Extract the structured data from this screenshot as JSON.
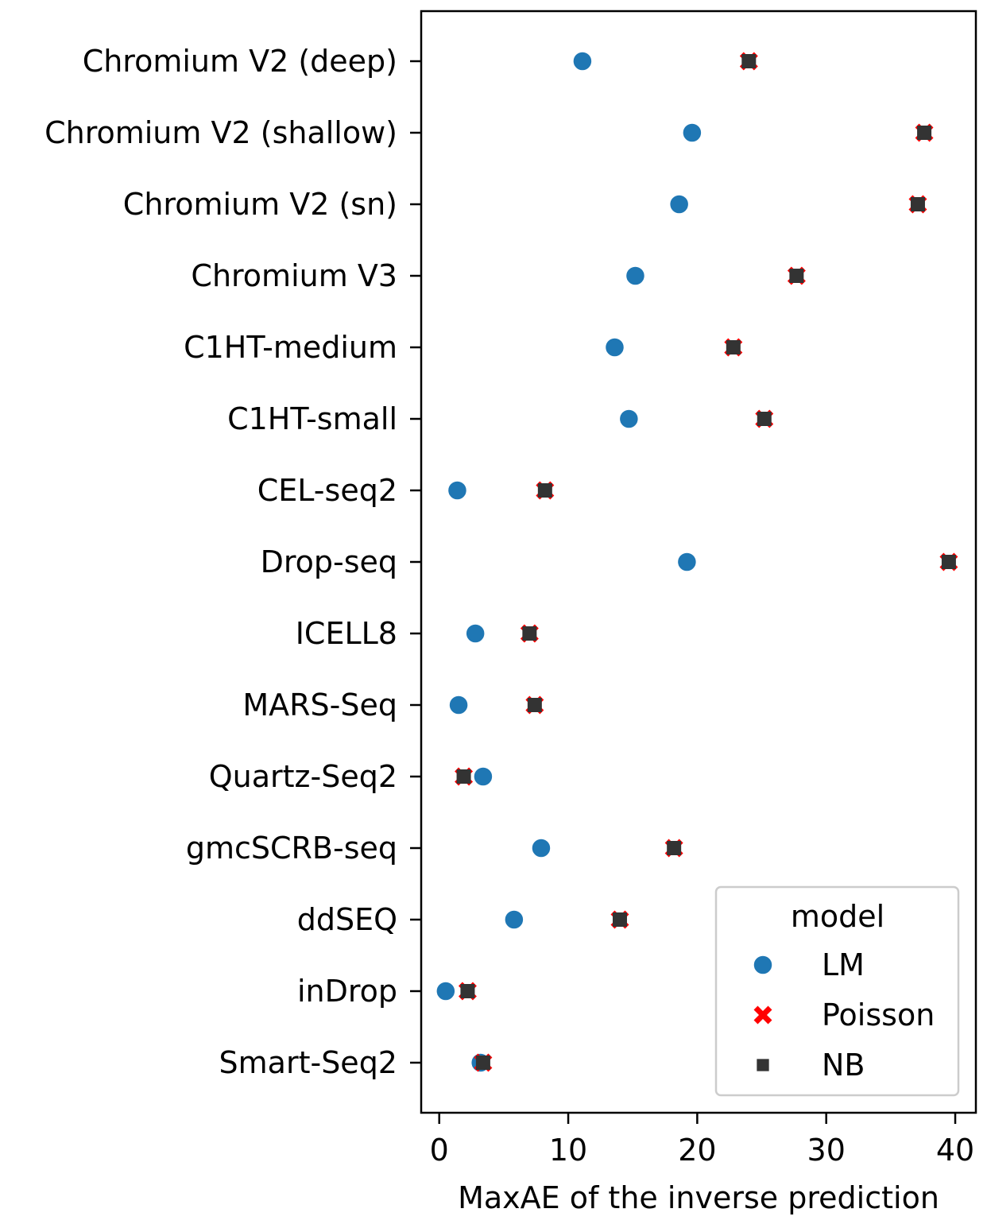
{
  "chart_data": {
    "type": "scatter",
    "orientation": "horizontal",
    "xlabel": "MaxAE of the inverse prediction",
    "ylabel": "",
    "xlim": [
      -1.4,
      41.6
    ],
    "xticks": [
      0,
      10,
      20,
      30,
      40
    ],
    "grid": false,
    "categories": [
      "Chromium V2 (deep)",
      "Chromium V2 (shallow)",
      "Chromium V2 (sn)",
      "Chromium V3",
      "C1HT-medium",
      "C1HT-small",
      "CEL-seq2",
      "Drop-seq",
      "ICELL8",
      "MARS-Seq",
      "Quartz-Seq2",
      "gmcSCRB-seq",
      "ddSEQ",
      "inDrop",
      "Smart-Seq2"
    ],
    "series": [
      {
        "name": "LM",
        "marker": "circle",
        "color": "#1f77b4",
        "values": [
          11.1,
          19.6,
          18.6,
          15.2,
          13.6,
          14.7,
          1.4,
          19.2,
          2.8,
          1.5,
          3.4,
          7.9,
          5.8,
          0.5,
          3.2
        ]
      },
      {
        "name": "Poisson",
        "marker": "x",
        "color": "#ff0000",
        "values": [
          24.0,
          37.6,
          37.1,
          27.7,
          22.8,
          25.2,
          8.2,
          39.5,
          7.0,
          7.4,
          1.9,
          18.2,
          14.0,
          2.2,
          3.4
        ]
      },
      {
        "name": "NB",
        "marker": "square",
        "color": "#333333",
        "values": [
          24.0,
          37.6,
          37.1,
          27.7,
          22.8,
          25.2,
          8.2,
          39.5,
          7.0,
          7.4,
          1.9,
          18.2,
          14.0,
          2.2,
          3.4
        ]
      }
    ],
    "legend": {
      "title": "model",
      "position": "lower-right"
    }
  }
}
